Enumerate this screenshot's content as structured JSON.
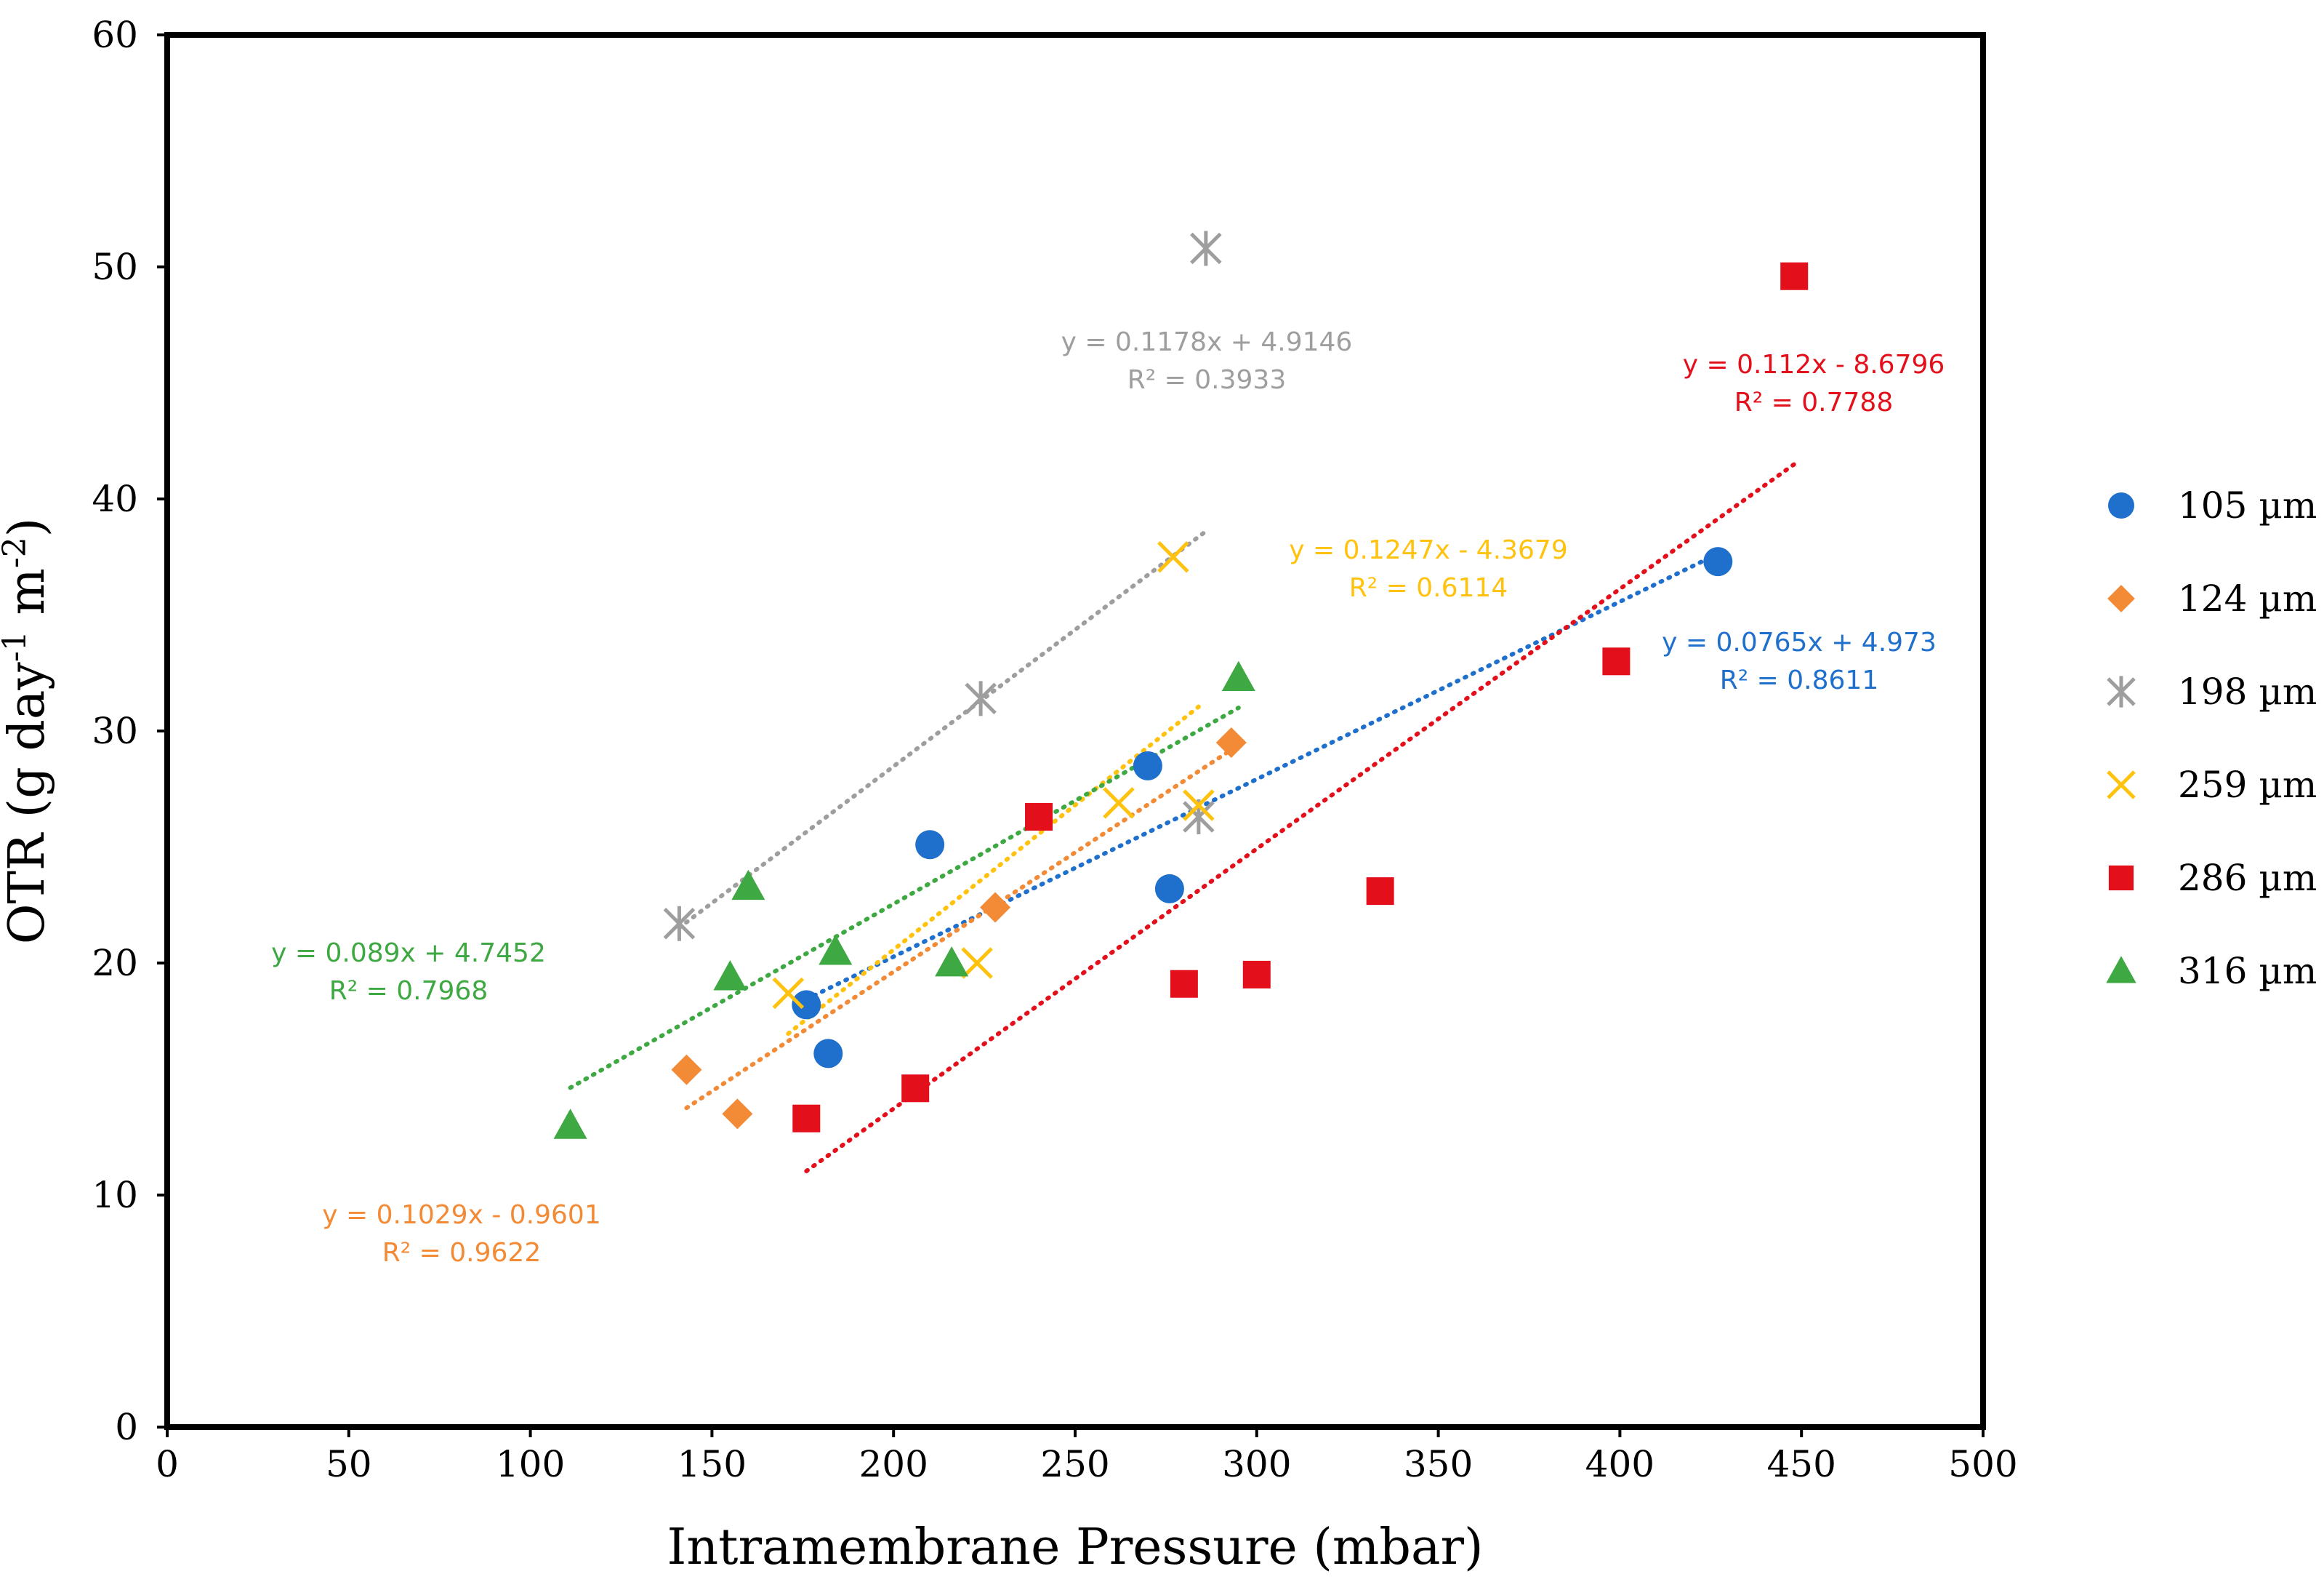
{
  "chart_data": {
    "type": "scatter",
    "title": "",
    "xlabel": "Intramembrane Pressure (mbar)",
    "ylabel_main": "OTR (g day",
    "ylabel_sup1": "-1",
    "ylabel_mid": " m",
    "ylabel_sup2": "-2",
    "ylabel_end": ")",
    "xlim": [
      0,
      500
    ],
    "ylim": [
      0,
      60
    ],
    "xticks": [
      0,
      50,
      100,
      150,
      200,
      250,
      300,
      350,
      400,
      450,
      500
    ],
    "yticks": [
      0,
      10,
      20,
      30,
      40,
      50,
      60
    ],
    "grid": false,
    "legend_position": "right",
    "series": [
      {
        "name": "105 µm",
        "color": "#1f6fcc",
        "marker": "circle",
        "points": [
          [
            176,
            18.2
          ],
          [
            182,
            16.1
          ],
          [
            210,
            25.1
          ],
          [
            270,
            28.5
          ],
          [
            276,
            23.2
          ],
          [
            427,
            37.3
          ]
        ],
        "trendline": {
          "x_range": [
            176,
            427
          ],
          "slope": 0.0765,
          "intercept": 4.973
        },
        "equation": "y = 0.0765x + 4.973",
        "r2": "R² = 0.8611"
      },
      {
        "name": "124 µm",
        "color": "#f28a36",
        "marker": "diamond",
        "points": [
          [
            143,
            15.4
          ],
          [
            157,
            13.5
          ],
          [
            228,
            22.4
          ],
          [
            293,
            29.5
          ]
        ],
        "trendline": {
          "x_range": [
            143,
            293
          ],
          "slope": 0.1029,
          "intercept": -0.9601
        },
        "equation": "y = 0.1029x - 0.9601",
        "r2": "R² = 0.9622"
      },
      {
        "name": "198 µm",
        "color": "#9e9e9e",
        "marker": "asterisk",
        "points": [
          [
            141,
            21.7
          ],
          [
            224,
            31.4
          ],
          [
            284,
            26.3
          ],
          [
            286,
            50.8
          ]
        ],
        "trendline": {
          "x_range": [
            141,
            286
          ],
          "slope": 0.1178,
          "intercept": 4.9146
        },
        "equation": "y = 0.1178x + 4.9146",
        "r2": "R² = 0.3933"
      },
      {
        "name": "259 µm",
        "color": "#ffc20e",
        "marker": "x",
        "points": [
          [
            171,
            18.7
          ],
          [
            223,
            20.0
          ],
          [
            262,
            26.9
          ],
          [
            277,
            37.5
          ],
          [
            284,
            26.8
          ]
        ],
        "trendline": {
          "x_range": [
            171,
            284
          ],
          "slope": 0.1247,
          "intercept": -4.3679
        },
        "equation": "y = 0.1247x - 4.3679",
        "r2": "R² = 0.6114"
      },
      {
        "name": "286 µm",
        "color": "#e3101b",
        "marker": "square",
        "points": [
          [
            176,
            13.3
          ],
          [
            206,
            14.6
          ],
          [
            240,
            26.3
          ],
          [
            280,
            19.1
          ],
          [
            300,
            19.5
          ],
          [
            334,
            23.1
          ],
          [
            399,
            33.0
          ],
          [
            448,
            49.6
          ]
        ],
        "trendline": {
          "x_range": [
            176,
            448
          ],
          "slope": 0.112,
          "intercept": -8.6796
        },
        "equation": "y = 0.112x - 8.6796",
        "r2": "R² = 0.7788"
      },
      {
        "name": "316 µm",
        "color": "#3ea842",
        "marker": "triangle",
        "points": [
          [
            111,
            13.0
          ],
          [
            155,
            19.4
          ],
          [
            160,
            23.3
          ],
          [
            184,
            20.5
          ],
          [
            216,
            20.0
          ],
          [
            295,
            32.3
          ]
        ],
        "trendline": {
          "x_range": [
            111,
            295
          ],
          "slope": 0.089,
          "intercept": 4.7452
        },
        "equation": "y = 0.089x + 4.7452",
        "r2": "R² = 0.7968"
      }
    ]
  }
}
